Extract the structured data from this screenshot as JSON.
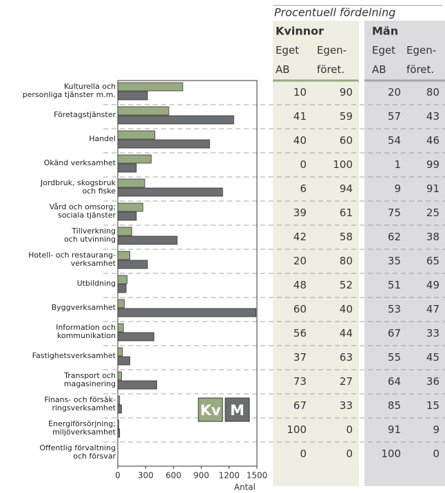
{
  "chart_data": {
    "type": "bar",
    "orientation": "horizontal",
    "categories": [
      "Kulturella och\npersonliga tjänster m.m.",
      "Företagstjänster",
      "Handel",
      "Okänd verksamhet",
      "Jordbruk, skogsbruk\noch fiske",
      "Vård och omsorg;\nsociala tjänster",
      "Tillverkning\noch utvinning",
      "Hotell- och restaurang-\nverksamhet",
      "Utbildning",
      "Byggverksamhet",
      "Information och\nkommunikation",
      "Fastighetsverksamhet",
      "Transport och\nmagasinering",
      "Finans- och försäk-\nringsverksamhet",
      "Energiförsörjning;\nmiljöverksamhet",
      "Offentlig förvaltning\noch försvar"
    ],
    "series": [
      {
        "name": "Kv",
        "color": "#98aa80",
        "values": [
          700,
          550,
          400,
          360,
          290,
          270,
          150,
          130,
          100,
          70,
          60,
          50,
          40,
          20,
          10,
          0
        ]
      },
      {
        "name": "M",
        "color": "#6d6e71",
        "values": [
          320,
          1250,
          990,
          200,
          1130,
          200,
          640,
          320,
          90,
          1490,
          390,
          130,
          420,
          40,
          20,
          0
        ]
      }
    ],
    "xlim": [
      0,
      1500
    ],
    "xticks": [
      0,
      300,
      600,
      900,
      1200,
      1500
    ],
    "xlabel": "Antal"
  },
  "table": {
    "title": "Procentuell fördelning",
    "groups": [
      {
        "name": "Kvinnor",
        "columns": [
          "Eget\nAB",
          "Egen-\nföret."
        ]
      },
      {
        "name": "Män",
        "columns": [
          "Eget\nAB",
          "Egen-\nföret."
        ]
      }
    ],
    "rows": [
      [
        10,
        90,
        20,
        80
      ],
      [
        41,
        59,
        57,
        43
      ],
      [
        40,
        60,
        54,
        46
      ],
      [
        0,
        100,
        1,
        99
      ],
      [
        6,
        94,
        9,
        91
      ],
      [
        39,
        61,
        75,
        25
      ],
      [
        42,
        58,
        62,
        38
      ],
      [
        20,
        80,
        35,
        65
      ],
      [
        48,
        52,
        51,
        49
      ],
      [
        60,
        40,
        53,
        47
      ],
      [
        56,
        44,
        67,
        33
      ],
      [
        37,
        63,
        55,
        45
      ],
      [
        73,
        27,
        64,
        36
      ],
      [
        67,
        33,
        85,
        15
      ],
      [
        100,
        0,
        91,
        9
      ],
      [
        0,
        0,
        100,
        0
      ]
    ]
  }
}
